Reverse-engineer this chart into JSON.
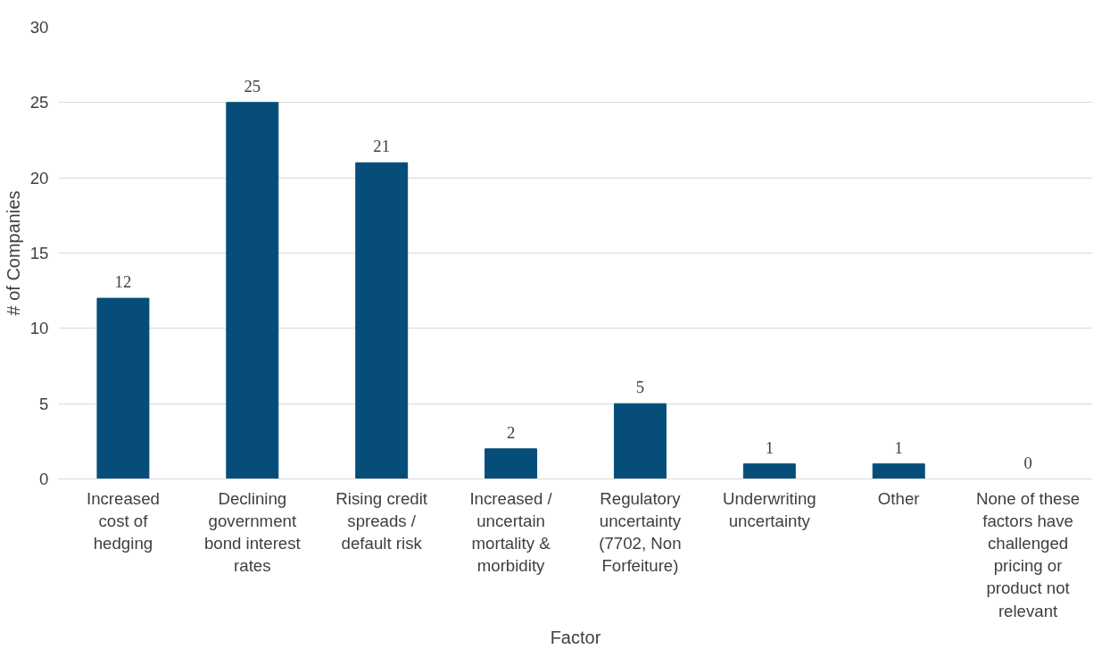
{
  "chart_data": {
    "type": "bar",
    "xlabel": "Factor",
    "ylabel": "# of Companies",
    "categories": [
      "Increased\ncost of\nhedging",
      "Declining\ngovernment\nbond interest\nrates",
      "Rising credit\nspreads /\ndefault risk",
      "Increased /\nuncertain\nmortality &\nmorbidity",
      "Regulatory\nuncertainty\n(7702, Non\nForfeiture)",
      "Underwriting\nuncertainty",
      "Other",
      "None of these\nfactors have\nchallenged\npricing or\nproduct not\nrelevant"
    ],
    "values": [
      12,
      25,
      21,
      2,
      5,
      1,
      1,
      0
    ],
    "color": "#064d7a",
    "ylim": [
      0,
      30
    ],
    "yticks": [
      0,
      5,
      10,
      15,
      20,
      25,
      30
    ],
    "grid": "y",
    "data_labels": true
  }
}
